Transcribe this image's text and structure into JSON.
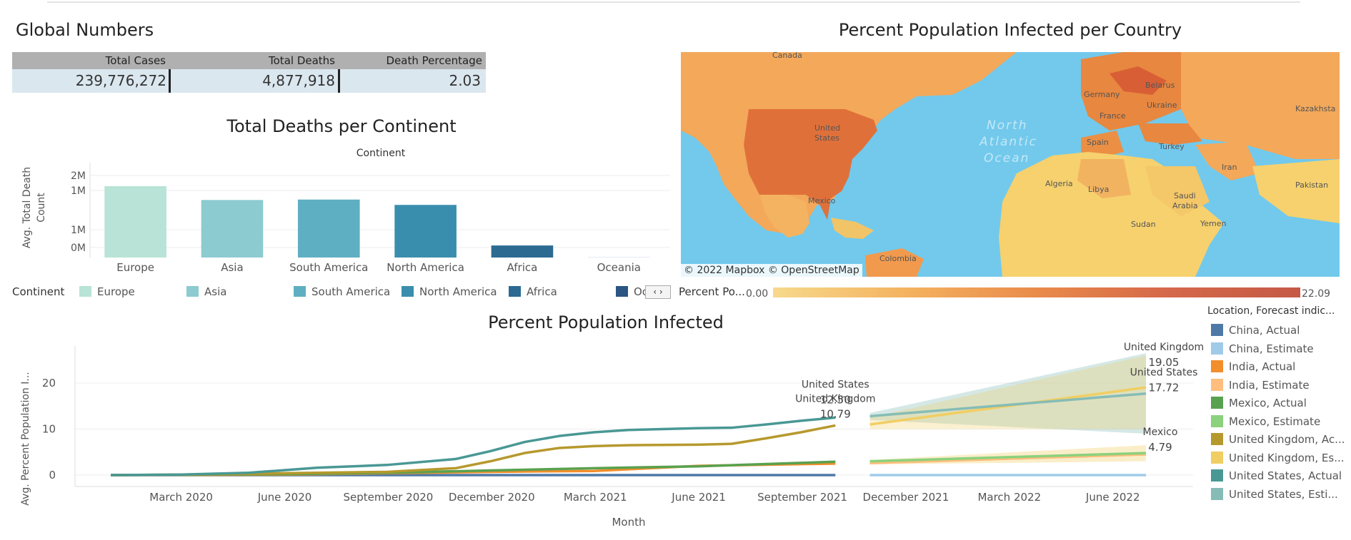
{
  "global_numbers": {
    "title": "Global Numbers",
    "headers": [
      "Total Cases",
      "Total Deaths",
      "Death Percentage"
    ],
    "values": [
      "239,776,272",
      "4,877,918",
      "2.03"
    ]
  },
  "map_panel": {
    "title": "Percent Population Infected per Country",
    "labels": {
      "canada": "Canada",
      "united_states": "United\nStates",
      "mexico": "Mexico",
      "colombia": "Colombia",
      "ocean": "North\nAtlantic\nOcean",
      "germany": "Germany",
      "belarus": "Belarus",
      "ukraine": "Ukraine",
      "france": "France",
      "spain": "Spain",
      "turkey": "Turkey",
      "iran": "Iran",
      "kazakhstan": "Kazakhsta",
      "pakistan": "Pakistan",
      "algeria": "Algeria",
      "libya": "Libya",
      "saudi": "Saudi\nArabia",
      "sudan": "Sudan",
      "yemen": "Yemen"
    },
    "attribution": "© 2022 Mapbox  © OpenStreetMap",
    "legend_label": "Percent Po...",
    "legend_min": "0.00",
    "legend_max": "22.09"
  },
  "chart_data": [
    {
      "type": "bar",
      "title": "Total Deaths per Continent",
      "subtitle": "Continent",
      "ylabel": "Avg. Total Death Count",
      "categories": [
        "Europe",
        "Asia",
        "South America",
        "North America",
        "Africa",
        "Oceania"
      ],
      "values": [
        1600000,
        1290000,
        1300000,
        1180000,
        270000,
        2000
      ],
      "ylim": [
        0,
        2000000
      ],
      "ytick_labels": [
        "2M",
        "1M",
        "1M",
        "0M"
      ],
      "colors": [
        "#b8e3d6",
        "#8ccbd0",
        "#5eafc1",
        "#3a8ead",
        "#2c6a92",
        "#2b5583"
      ],
      "legend_title": "Continent",
      "legend_placement": "bottom"
    },
    {
      "type": "line",
      "title": "Percent Population Infected",
      "xlabel": "Month",
      "ylabel": "Avg. Percent Population I...",
      "ylim": [
        0,
        27
      ],
      "yticks": [
        0,
        10,
        20
      ],
      "xtick_labels": [
        "March 2020",
        "June 2020",
        "September 2020",
        "December 2020",
        "March 2021",
        "June 2021",
        "September 2021",
        "December 2021",
        "March 2022",
        "June 2022"
      ],
      "legend_title": "Location, Forecast indic...",
      "legend_placement": "right",
      "series": [
        {
          "name": "China, Actual",
          "color": "#4e79a7",
          "x": [
            "2020-01",
            "2021-10"
          ],
          "values": [
            0.0,
            0.0
          ]
        },
        {
          "name": "China, Estimate",
          "color": "#a0cbe8",
          "x": [
            "2021-11",
            "2022-07"
          ],
          "values": [
            0.0,
            0.0
          ]
        },
        {
          "name": "India, Actual",
          "color": "#f28e2b",
          "x": [
            "2020-01",
            "2020-06",
            "2020-09",
            "2020-12",
            "2021-03",
            "2021-06",
            "2021-10"
          ],
          "values": [
            0.0,
            0.1,
            0.4,
            0.7,
            0.9,
            2.0,
            2.5
          ]
        },
        {
          "name": "India, Estimate",
          "color": "#ffbe7d",
          "x": [
            "2021-11",
            "2022-07"
          ],
          "values": [
            2.6,
            4.5
          ]
        },
        {
          "name": "Mexico, Actual",
          "color": "#59a14f",
          "x": [
            "2020-01",
            "2020-06",
            "2020-09",
            "2020-12",
            "2021-03",
            "2021-06",
            "2021-10"
          ],
          "values": [
            0.0,
            0.2,
            0.5,
            1.0,
            1.5,
            1.9,
            2.9
          ]
        },
        {
          "name": "Mexico, Estimate",
          "color": "#8cd17d",
          "x": [
            "2021-11",
            "2022-07"
          ],
          "values": [
            3.0,
            4.79
          ]
        },
        {
          "name": "United Kingdom, Actual",
          "color": "#b6992d",
          "x": [
            "2020-01",
            "2020-03",
            "2020-06",
            "2020-09",
            "2020-11",
            "2020-12",
            "2021-01",
            "2021-02",
            "2021-03",
            "2021-04",
            "2021-06",
            "2021-07",
            "2021-08",
            "2021-09",
            "2021-10"
          ],
          "values": [
            0.0,
            0.1,
            0.4,
            0.7,
            1.5,
            3.0,
            4.8,
            5.9,
            6.3,
            6.5,
            6.6,
            6.8,
            8.0,
            9.3,
            10.79
          ]
        },
        {
          "name": "United Kingdom, Estimate",
          "color": "#f1ce63",
          "x": [
            "2021-11",
            "2022-07"
          ],
          "values": [
            11.0,
            19.05
          ]
        },
        {
          "name": "United States, Actual",
          "color": "#499894",
          "x": [
            "2020-01",
            "2020-03",
            "2020-05",
            "2020-07",
            "2020-09",
            "2020-11",
            "2020-12",
            "2021-01",
            "2021-02",
            "2021-03",
            "2021-04",
            "2021-06",
            "2021-07",
            "2021-08",
            "2021-09",
            "2021-10"
          ],
          "values": [
            0.0,
            0.1,
            0.5,
            1.6,
            2.2,
            3.5,
            5.2,
            7.2,
            8.5,
            9.3,
            9.8,
            10.2,
            10.3,
            11.0,
            11.8,
            12.5
          ]
        },
        {
          "name": "United States, Estimate",
          "color": "#86bcb6",
          "x": [
            "2021-11",
            "2022-07"
          ],
          "values": [
            12.8,
            17.72
          ]
        }
      ],
      "annotations": [
        {
          "series": "United States, Actual",
          "label": "United States",
          "value": "12.50"
        },
        {
          "series": "United Kingdom, Actual",
          "label": "United Kingdom",
          "value": "10.79"
        },
        {
          "series": "United Kingdom, Estimate",
          "label": "United Kingdom",
          "value": "19.05"
        },
        {
          "series": "United States, Estimate",
          "label": "United States",
          "value": "17.72"
        },
        {
          "series": "Mexico, Estimate",
          "label": "Mexico",
          "value": "4.79"
        }
      ]
    }
  ]
}
